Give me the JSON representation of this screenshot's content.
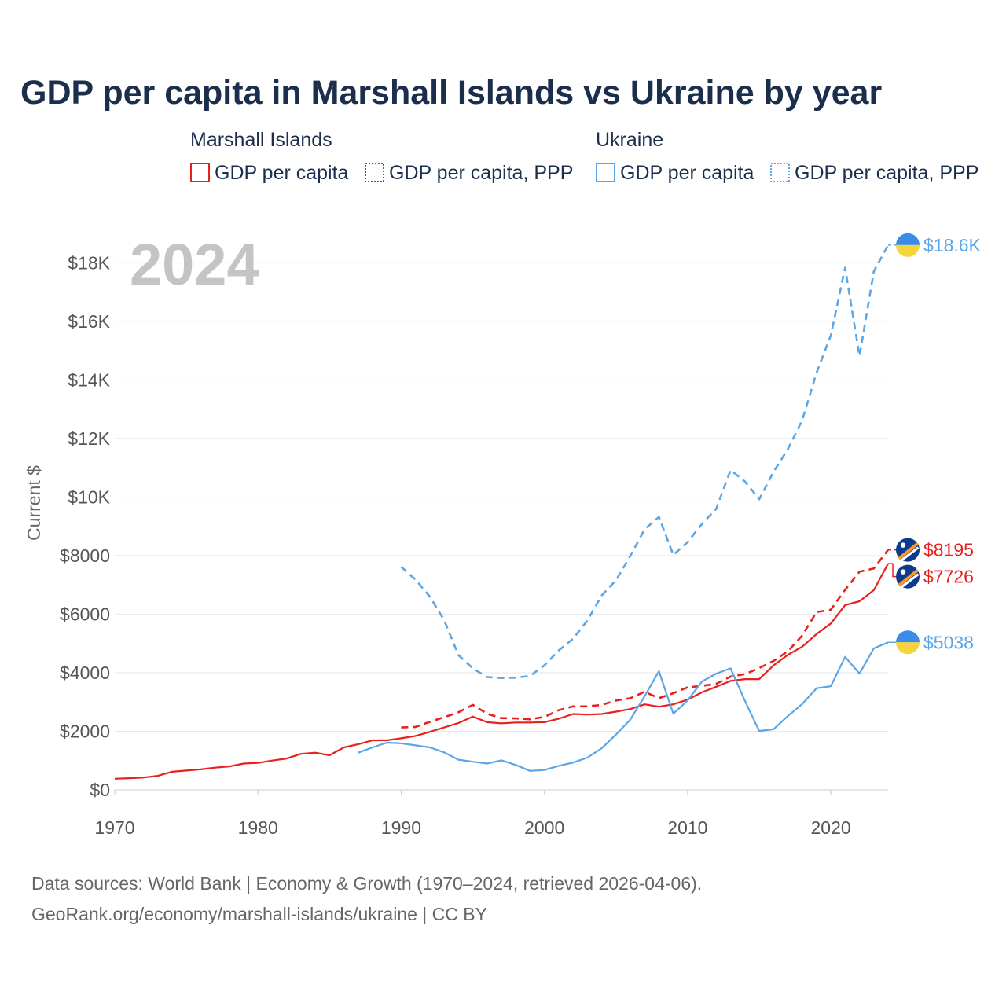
{
  "title": "GDP per capita in Marshall Islands vs Ukraine by year",
  "legend": {
    "groups": [
      {
        "country": "Marshall Islands",
        "color": "#e8201e",
        "items": [
          {
            "label": "GDP per capita",
            "style": "solid"
          },
          {
            "label": "GDP per capita, PPP",
            "style": "dotted"
          }
        ]
      },
      {
        "country": "Ukraine",
        "color": "#5aa6e6",
        "items": [
          {
            "label": "GDP per capita",
            "style": "solid"
          },
          {
            "label": "GDP per capita, PPP",
            "style": "dotted"
          }
        ]
      }
    ]
  },
  "year_label": "2024",
  "source": {
    "line1": "Data sources: World Bank | Economy & Growth (1970–2024, retrieved 2026-04-06).",
    "line2": "GeoRank.org/economy/marshall-islands/ukraine | CC BY"
  },
  "chart_data": {
    "type": "line",
    "ylabel": "Current $",
    "xlim": [
      1970,
      2024
    ],
    "ylim": [
      0,
      19000
    ],
    "x_ticks": [
      1970,
      1980,
      1990,
      2000,
      2010,
      2020
    ],
    "y_ticks": [
      {
        "value": 0,
        "label": "$0"
      },
      {
        "value": 2000,
        "label": "$2000"
      },
      {
        "value": 4000,
        "label": "$4000"
      },
      {
        "value": 6000,
        "label": "$6000"
      },
      {
        "value": 8000,
        "label": "$8000"
      },
      {
        "value": 10000,
        "label": "$10K"
      },
      {
        "value": 12000,
        "label": "$12K"
      },
      {
        "value": 14000,
        "label": "$14K"
      },
      {
        "value": 16000,
        "label": "$16K"
      },
      {
        "value": 18000,
        "label": "$18K"
      }
    ],
    "series": [
      {
        "name": "Marshall Islands GDP per capita",
        "country": "Marshall Islands",
        "color": "#e8201e",
        "dash": "solid",
        "end_label": "$7726",
        "flag": "marshall-islands",
        "x": [
          1970,
          1971,
          1972,
          1973,
          1974,
          1975,
          1976,
          1977,
          1978,
          1979,
          1980,
          1981,
          1982,
          1983,
          1984,
          1985,
          1986,
          1987,
          1988,
          1989,
          1990,
          1991,
          1992,
          1993,
          1994,
          1995,
          1996,
          1997,
          1998,
          1999,
          2000,
          2001,
          2002,
          2003,
          2004,
          2005,
          2006,
          2007,
          2008,
          2009,
          2010,
          2011,
          2012,
          2013,
          2014,
          2015,
          2016,
          2017,
          2018,
          2019,
          2020,
          2021,
          2022,
          2023,
          2024
        ],
        "values": [
          380,
          400,
          420,
          480,
          620,
          660,
          700,
          760,
          800,
          900,
          920,
          1000,
          1070,
          1230,
          1270,
          1180,
          1450,
          1560,
          1690,
          1690,
          1760,
          1840,
          1980,
          2130,
          2280,
          2500,
          2310,
          2270,
          2300,
          2300,
          2310,
          2430,
          2590,
          2570,
          2590,
          2670,
          2760,
          2920,
          2840,
          2920,
          3080,
          3330,
          3520,
          3720,
          3780,
          3780,
          4250,
          4610,
          4890,
          5320,
          5680,
          6310,
          6440,
          6820,
          7726
        ]
      },
      {
        "name": "Marshall Islands GDP per capita, PPP",
        "country": "Marshall Islands",
        "color": "#e8201e",
        "dash": "dashed",
        "end_label": "$8195",
        "flag": "marshall-islands",
        "x": [
          1990,
          1991,
          1992,
          1993,
          1994,
          1995,
          1996,
          1997,
          1998,
          1999,
          2000,
          2001,
          2002,
          2003,
          2004,
          2005,
          2006,
          2007,
          2008,
          2009,
          2010,
          2011,
          2012,
          2013,
          2014,
          2015,
          2016,
          2017,
          2018,
          2019,
          2020,
          2021,
          2022,
          2023,
          2024
        ],
        "values": [
          2130,
          2150,
          2320,
          2480,
          2650,
          2900,
          2600,
          2450,
          2440,
          2410,
          2490,
          2720,
          2850,
          2850,
          2900,
          3050,
          3130,
          3350,
          3130,
          3300,
          3500,
          3550,
          3620,
          3870,
          3950,
          4160,
          4400,
          4730,
          5270,
          6070,
          6150,
          6830,
          7450,
          7560,
          8195
        ]
      },
      {
        "name": "Ukraine GDP per capita",
        "country": "Ukraine",
        "color": "#5aa6e6",
        "dash": "solid",
        "end_label": "$5038",
        "flag": "ukraine",
        "x": [
          1987,
          1988,
          1989,
          1990,
          1991,
          1992,
          1993,
          1994,
          1995,
          1996,
          1997,
          1998,
          1999,
          2000,
          2001,
          2002,
          2003,
          2004,
          2005,
          2006,
          2007,
          2008,
          2009,
          2010,
          2011,
          2012,
          2013,
          2014,
          2015,
          2016,
          2017,
          2018,
          2019,
          2020,
          2021,
          2022,
          2023,
          2024
        ],
        "values": [
          1270,
          1450,
          1610,
          1590,
          1520,
          1450,
          1280,
          1030,
          960,
          900,
          1010,
          850,
          650,
          680,
          820,
          930,
          1100,
          1420,
          1890,
          2400,
          3200,
          4050,
          2600,
          3050,
          3700,
          3970,
          4150,
          3040,
          2010,
          2070,
          2520,
          2930,
          3470,
          3540,
          4540,
          3970,
          4830,
          5038
        ]
      },
      {
        "name": "Ukraine GDP per capita, PPP",
        "country": "Ukraine",
        "color": "#5aa6e6",
        "dash": "dashed",
        "end_label": "$18.6K",
        "flag": "ukraine",
        "x": [
          1990,
          1991,
          1992,
          1993,
          1994,
          1995,
          1996,
          1997,
          1998,
          1999,
          2000,
          2001,
          2002,
          2003,
          2004,
          2005,
          2006,
          2007,
          2008,
          2009,
          2010,
          2011,
          2012,
          2013,
          2014,
          2015,
          2016,
          2017,
          2018,
          2019,
          2020,
          2021,
          2022,
          2023,
          2024
        ],
        "values": [
          7620,
          7180,
          6600,
          5800,
          4600,
          4150,
          3850,
          3820,
          3830,
          3890,
          4250,
          4760,
          5160,
          5780,
          6640,
          7160,
          7990,
          8900,
          9320,
          8020,
          8460,
          9080,
          9600,
          10920,
          10530,
          9920,
          10860,
          11630,
          12620,
          14240,
          15520,
          17830,
          14810,
          17700,
          18600
        ]
      }
    ]
  }
}
